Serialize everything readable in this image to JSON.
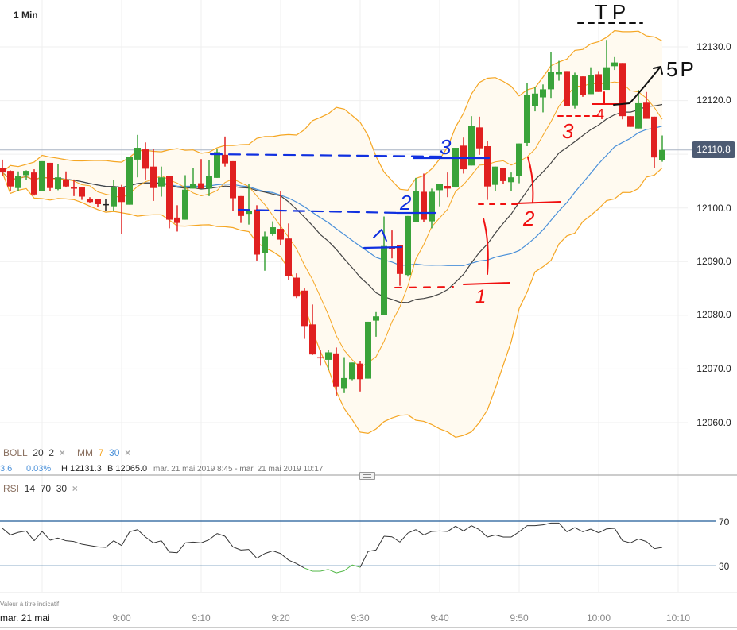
{
  "header": {
    "timeframe": "1 Min"
  },
  "legend": {
    "boll_label": "BOLL",
    "boll_period": "20",
    "boll_dev": "2",
    "mm_label": "MM",
    "mm_fast": "7",
    "mm_slow": "30",
    "remove_icon": "×",
    "rsi_label": "RSI",
    "rsi_period": "14",
    "rsi_high": "70",
    "rsi_low": "30"
  },
  "info": {
    "change": "3.6",
    "change_pct": "0.03%",
    "high": "H 12131.3",
    "low": "B 12065.0",
    "range": "mar. 21 mai 2019 8:45 - mar. 21 mai 2019 10:17"
  },
  "footer": {
    "disclaimer": "Valeur à titre indicatif",
    "date": "mar. 21 mai"
  },
  "colors": {
    "up": "#3aa33a",
    "down": "#e02020",
    "band": "#f5a623",
    "band_fill": "#fffaf0",
    "mm30": "#4a90d9",
    "boll_mid": "#444444",
    "rsi": "#333333",
    "rsi_oversold": "#55b94a",
    "rsi_levels": "#1f5a96",
    "current_price": "#4d5b73"
  },
  "chart_data": [
    {
      "type": "candlestick",
      "yaxis_ticks": [
        "12130.0",
        "12120.0",
        "12100.0",
        "12090.0",
        "12080.0",
        "12070.0",
        "12060.0"
      ],
      "xaxis_ticks": [
        "9:00",
        "9:10",
        "9:20",
        "9:30",
        "9:40",
        "9:50",
        "10:00",
        "10:10"
      ],
      "ylim": [
        12052,
        12139
      ],
      "current_price": "12110.8",
      "grid": true,
      "indicators": {
        "bollinger": [
          20,
          2
        ],
        "moving_averages": [
          7,
          30
        ]
      },
      "candle_fields": [
        "time",
        "open",
        "high",
        "low",
        "close"
      ],
      "candles": [
        [
          "8:45",
          12107.4,
          12109,
          12106,
          12106.6
        ],
        [
          "8:46",
          12106.9,
          12107,
          12103.2,
          12104.0
        ],
        [
          "8:47",
          12103.7,
          12106.8,
          12103.1,
          12105.9
        ],
        [
          "8:48",
          12106.1,
          12107,
          12105.2,
          12106.9
        ],
        [
          "8:49",
          12106.6,
          12107.2,
          12102.3,
          12102.5
        ],
        [
          "8:50",
          12103.2,
          12108.7,
          12103.2,
          12108.7
        ],
        [
          "8:51",
          12108.4,
          12108.4,
          12103.1,
          12103.7
        ],
        [
          "8:52",
          12103.5,
          12108.2,
          12103.3,
          12105.7
        ],
        [
          "8:53",
          12105.2,
          12106.8,
          12103.8,
          12104.0
        ],
        [
          "8:54",
          12103.8,
          12105.3,
          12102.2,
          12103.6
        ],
        [
          "8:55",
          12103.8,
          12103.8,
          12101.5,
          12102.1
        ],
        [
          "8:56",
          12101.6,
          12102,
          12101,
          12101.1
        ],
        [
          "8:57",
          12101.6,
          12101.6,
          12100.1,
          12100.7
        ],
        [
          "8:58",
          12100.6,
          12101.6,
          12099.5,
          12100.6
        ],
        [
          "8:59",
          12100.3,
          12105.2,
          12099.5,
          12103.8
        ],
        [
          "9:00",
          12103.8,
          12104.3,
          12095.1,
          12101.1
        ],
        [
          "9:01",
          12100.6,
          12109.5,
          12100.6,
          12109.5
        ],
        [
          "9:02",
          12109.0,
          12113.6,
          12105.7,
          12111.2
        ],
        [
          "9:03",
          12110.9,
          12112.2,
          12105.3,
          12107.3
        ],
        [
          "9:04",
          12107.7,
          12111.0,
          12101.3,
          12103.7
        ],
        [
          "9:05",
          12104.0,
          12107.7,
          12102.1,
          12105.7
        ],
        [
          "9:06",
          12105.9,
          12105.9,
          12096.2,
          12097.8
        ],
        [
          "9:07",
          12098.2,
          12100.5,
          12095.6,
          12097.2
        ],
        [
          "9:08",
          12097.8,
          12106.1,
          12097.8,
          12103.4
        ],
        [
          "9:09",
          12103.6,
          12107.4,
          12103.6,
          12104.4
        ],
        [
          "9:10",
          12104.6,
          12109.1,
          12103.6,
          12103.6
        ],
        [
          "9:11",
          12103.6,
          12108.9,
          12102.2,
          12105.9
        ],
        [
          "9:12",
          12105.6,
          12110.9,
          12105.6,
          12110.4
        ],
        [
          "9:13",
          12109.9,
          12113.3,
          12107.7,
          12108.3
        ],
        [
          "9:14",
          12108.7,
          12108.7,
          12099.5,
          12101.8
        ],
        [
          "9:15",
          12102.2,
          12102.2,
          12097.2,
          12098.5
        ],
        [
          "9:16",
          12098.9,
          12104.4,
          12096.9,
          12099.4
        ],
        [
          "9:17",
          12099.7,
          12100.5,
          12090.2,
          12091.3
        ],
        [
          "9:18",
          12091.6,
          12095.6,
          12088.3,
          12094.7
        ],
        [
          "9:19",
          12095.1,
          12097.5,
          12094.8,
          12096.4
        ],
        [
          "9:20",
          12096.1,
          12103.2,
          12093.0,
          12094.1
        ],
        [
          "9:21",
          12094.3,
          12097.1,
          12086.5,
          12087.3
        ],
        [
          "9:22",
          12087.0,
          12087.8,
          12083.2,
          12083.5
        ],
        [
          "9:23",
          12084.6,
          12085.0,
          12075.6,
          12078.0
        ],
        [
          "9:24",
          12078.3,
          12082.0,
          12072.6,
          12072.7
        ],
        [
          "9:25",
          12072.2,
          12073.6,
          12070.6,
          12072.0
        ],
        [
          "9:26",
          12071.7,
          12073.6,
          12069.8,
          12073.1
        ],
        [
          "9:27",
          12072.9,
          12074.0,
          12065.0,
          12066.7
        ],
        [
          "9:28",
          12066.3,
          12072.2,
          12065.5,
          12068.3
        ],
        [
          "9:29",
          12068.1,
          12071.2,
          12067.9,
          12071.2
        ],
        [
          "9:30",
          12071.0,
          12071.5,
          12065.8,
          12068.1
        ],
        [
          "9:31",
          12068.2,
          12078.8,
          12068.2,
          12078.8
        ],
        [
          "9:32",
          12079.0,
          12080.6,
          12076.0,
          12079.8
        ],
        [
          "9:33",
          12080.0,
          12098.4,
          12080.0,
          12092.9
        ],
        [
          "9:34",
          12092.8,
          12095.8,
          12090.6,
          12092.4
        ],
        [
          "9:35",
          12093.1,
          12093.1,
          12085.5,
          12087.7
        ],
        [
          "9:36",
          12087.5,
          12098.5,
          12087.2,
          12098.5
        ],
        [
          "9:37",
          12097.3,
          12105.6,
          12097.3,
          12103.2
        ],
        [
          "9:38",
          12103.0,
          12106.4,
          12097.4,
          12097.8
        ],
        [
          "9:39",
          12097.5,
          12103.6,
          12096.2,
          12103.0
        ],
        [
          "9:40",
          12103.3,
          12104.4,
          12100.3,
          12104.4
        ],
        [
          "9:41",
          12104.1,
          12106.6,
          12102.0,
          12103.6
        ],
        [
          "9:42",
          12103.8,
          12111.2,
          12103.8,
          12111.2
        ],
        [
          "9:43",
          12111.6,
          12113.1,
          12106.4,
          12107.2
        ],
        [
          "9:44",
          12107.9,
          12117.1,
          12107.9,
          12115.2
        ],
        [
          "9:45",
          12115.0,
          12117.0,
          12109.9,
          12111.1
        ],
        [
          "9:46",
          12111.5,
          12112.5,
          12101.5,
          12104.0
        ],
        [
          "9:47",
          12104.3,
          12107.7,
          12103.2,
          12107.7
        ],
        [
          "9:48",
          12107.5,
          12107.5,
          12104.5,
          12105.0
        ],
        [
          "9:49",
          12104.8,
          12106.6,
          12103.2,
          12105.7
        ],
        [
          "9:50",
          12105.9,
          12112.0,
          12104.6,
          12112.0
        ],
        [
          "9:51",
          12112.1,
          12123.2,
          12111.5,
          12121.0
        ],
        [
          "9:52",
          12119.0,
          12122.5,
          12118.0,
          12121.3
        ],
        [
          "9:53",
          12120.6,
          12123.0,
          12117.8,
          12122.1
        ],
        [
          "9:54",
          12122.1,
          12129.1,
          12120.5,
          12125.3
        ],
        [
          "9:55",
          12124.9,
          12127.4,
          12123.7,
          12125.3
        ],
        [
          "9:56",
          12125.5,
          12125.5,
          12119.0,
          12119.0
        ],
        [
          "9:57",
          12119.1,
          12125.2,
          12118.5,
          12124.7
        ],
        [
          "9:58",
          12124.5,
          12124.5,
          12120.7,
          12121.0
        ],
        [
          "9:59",
          12121.2,
          12126.2,
          12121.2,
          12124.7
        ],
        [
          "10:00",
          12124.9,
          12125.5,
          12121.6,
          12121.6
        ],
        [
          "10:01",
          12122.0,
          12131.3,
          12122.0,
          12126.2
        ],
        [
          "10:02",
          12126.4,
          12128.1,
          12125.7,
          12127.1
        ],
        [
          "10:03",
          12127.0,
          12127.0,
          12116.5,
          12117.1
        ],
        [
          "10:04",
          12117.1,
          12117.1,
          12115.1,
          12115.1
        ],
        [
          "10:05",
          12114.8,
          12122.0,
          12114.8,
          12119.5
        ],
        [
          "10:06",
          12119.6,
          12121.6,
          12116.6,
          12116.6
        ],
        [
          "10:07",
          12117.0,
          12117.0,
          12107.4,
          12109.4
        ],
        [
          "10:08",
          12108.9,
          12113.5,
          12108.6,
          12110.8
        ]
      ]
    },
    {
      "type": "line",
      "name": "RSI",
      "levels": [
        70,
        30
      ],
      "yaxis_ticks": [
        "70",
        "30"
      ],
      "values": [
        63.6,
        57.7,
        60,
        61.2,
        52.5,
        60.8,
        53,
        54.9,
        52.5,
        51.8,
        49.4,
        48.2,
        47,
        46.6,
        52.5,
        48.2,
        60.5,
        62.4,
        55.8,
        50.6,
        52.5,
        42.3,
        41.8,
        50.6,
        51.3,
        50.6,
        53.4,
        58.9,
        56.5,
        47,
        44.2,
        44.7,
        36.9,
        41.1,
        43.5,
        41.1,
        35.2,
        32.1,
        28.1,
        25.3,
        25.3,
        26.9,
        23.8,
        25.7,
        30.9,
        28.8,
        43,
        44.2,
        56.5,
        56,
        51.3,
        59.3,
        62.4,
        57.7,
        60.8,
        61.2,
        60.8,
        65.5,
        61.2,
        66,
        62.4,
        55.8,
        57.7,
        55.8,
        55.8,
        60.5,
        66,
        66,
        66.7,
        68.3,
        68.3,
        60.5,
        64.3,
        60.5,
        62.9,
        59.6,
        63.1,
        63.6,
        52.5,
        50.6,
        54.1,
        51.8,
        45.4,
        46.6
      ]
    }
  ],
  "annotations": {
    "blue_1": "1",
    "blue_2": "2",
    "blue_3": "3",
    "red_1": "1",
    "red_2": "2",
    "red_3": "3",
    "red_4": "4",
    "tp": "TP",
    "sp": "5P"
  }
}
